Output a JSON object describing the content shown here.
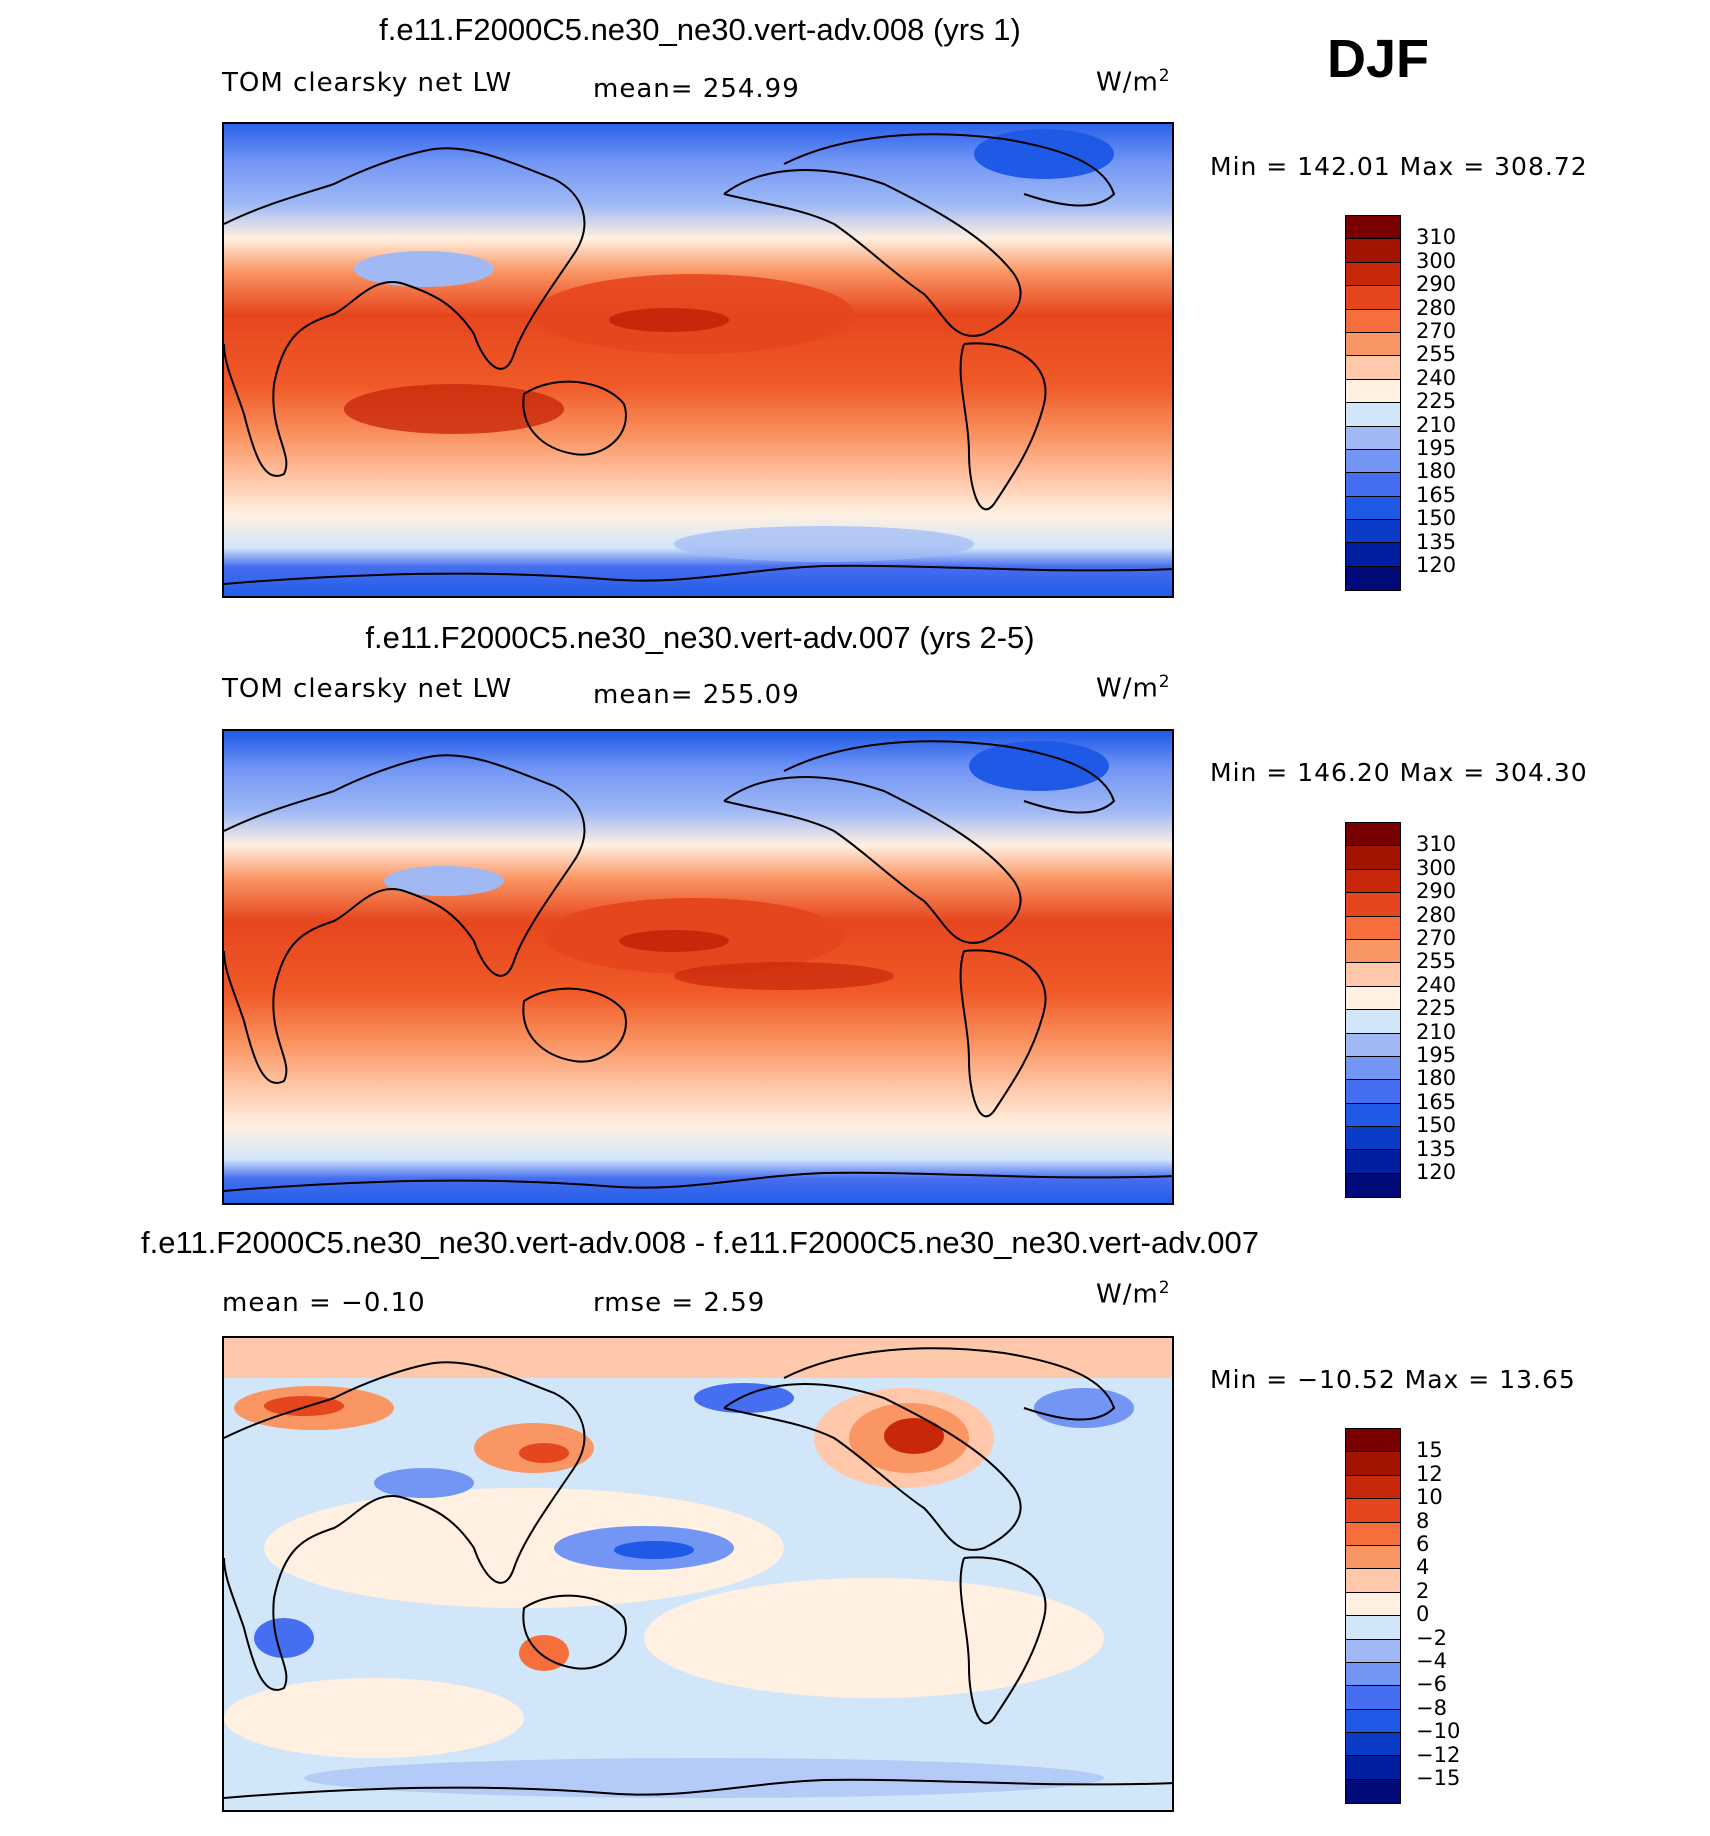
{
  "season": "DJF",
  "panels": [
    {
      "title": "f.e11.F2000C5.ne30_ne30.vert-adv.008 (yrs 1)",
      "left_label": "TOM clearsky net LW",
      "mean_text": "mean= 254.99",
      "units": "W/m",
      "units_exp": "2",
      "minmax": "Min = 142.01 Max = 308.72",
      "colorbar_labels": [
        "310",
        "300",
        "290",
        "280",
        "270",
        "255",
        "240",
        "225",
        "210",
        "195",
        "180",
        "165",
        "150",
        "135",
        "120"
      ]
    },
    {
      "title": "f.e11.F2000C5.ne30_ne30.vert-adv.007 (yrs 2-5)",
      "left_label": "TOM clearsky net LW",
      "mean_text": "mean= 255.09",
      "units": "W/m",
      "units_exp": "2",
      "minmax": "Min = 146.20 Max = 304.30",
      "colorbar_labels": [
        "310",
        "300",
        "290",
        "280",
        "270",
        "255",
        "240",
        "225",
        "210",
        "195",
        "180",
        "165",
        "150",
        "135",
        "120"
      ]
    },
    {
      "title": "f.e11.F2000C5.ne30_ne30.vert-adv.008 - f.e11.F2000C5.ne30_ne30.vert-adv.007",
      "left_label": "mean =   −0.10",
      "mean_text": "rmse =    2.59",
      "units": "W/m",
      "units_exp": "2",
      "minmax": "Min = −10.52 Max =   13.65",
      "colorbar_labels": [
        "15",
        "12",
        "10",
        "8",
        "6",
        "4",
        "2",
        "0",
        "−2",
        "−4",
        "−6",
        "−8",
        "−10",
        "−12",
        "−15"
      ]
    }
  ],
  "chart_data": [
    {
      "type": "heatmap",
      "title": "f.e11.F2000C5.ne30_ne30.vert-adv.008 (yrs 1)",
      "variable": "TOM clearsky net LW",
      "units": "W/m2",
      "mean": 254.99,
      "min": 142.01,
      "max": 308.72,
      "contour_levels": [
        120,
        135,
        150,
        165,
        180,
        195,
        210,
        225,
        240,
        255,
        270,
        280,
        290,
        300,
        310
      ],
      "colors": [
        "#000a78",
        "#001ea0",
        "#0a3cc8",
        "#1e5ae6",
        "#466ef0",
        "#7396f5",
        "#a0b9f5",
        "#d2e6fa",
        "#fff0e1",
        "#ffc8aa",
        "#fa9664",
        "#f56e3c",
        "#e6461e",
        "#c8280a",
        "#a01400",
        "#780000"
      ]
    },
    {
      "type": "heatmap",
      "title": "f.e11.F2000C5.ne30_ne30.vert-adv.007 (yrs 2-5)",
      "variable": "TOM clearsky net LW",
      "units": "W/m2",
      "mean": 255.09,
      "min": 146.2,
      "max": 304.3,
      "contour_levels": [
        120,
        135,
        150,
        165,
        180,
        195,
        210,
        225,
        240,
        255,
        270,
        280,
        290,
        300,
        310
      ],
      "colors": [
        "#000a78",
        "#001ea0",
        "#0a3cc8",
        "#1e5ae6",
        "#466ef0",
        "#7396f5",
        "#a0b9f5",
        "#d2e6fa",
        "#fff0e1",
        "#ffc8aa",
        "#fa9664",
        "#f56e3c",
        "#e6461e",
        "#c8280a",
        "#a01400",
        "#780000"
      ]
    },
    {
      "type": "heatmap",
      "title": "f.e11.F2000C5.ne30_ne30.vert-adv.008 - f.e11.F2000C5.ne30_ne30.vert-adv.007",
      "units": "W/m2",
      "mean": -0.1,
      "rmse": 2.59,
      "min": -10.52,
      "max": 13.65,
      "contour_levels": [
        -15,
        -12,
        -10,
        -8,
        -6,
        -4,
        -2,
        0,
        2,
        4,
        6,
        8,
        10,
        12,
        15
      ],
      "colors": [
        "#000a78",
        "#001ea0",
        "#0a3cc8",
        "#1e5ae6",
        "#466ef0",
        "#7396f5",
        "#a0b9f5",
        "#d2e6fa",
        "#fff0e1",
        "#ffc8aa",
        "#fa9664",
        "#f56e3c",
        "#e6461e",
        "#c8280a",
        "#a01400",
        "#780000"
      ]
    }
  ]
}
